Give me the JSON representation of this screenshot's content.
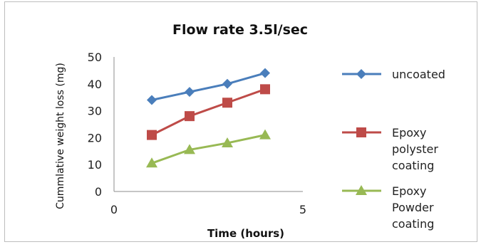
{
  "chart_data": {
    "type": "line",
    "title": "Flow rate 3.5l/sec",
    "xlabel": "Time (hours)",
    "ylabel": "Cummlative weight loss (mg)",
    "xlim": [
      0,
      5
    ],
    "ylim": [
      0,
      50
    ],
    "x_ticks": [
      "0",
      "5"
    ],
    "y_ticks": [
      "0",
      "10",
      "20",
      "30",
      "40",
      "50"
    ],
    "x": [
      1,
      2,
      3,
      4
    ],
    "series": [
      {
        "name": "uncoated",
        "name_lines": [
          "uncoated"
        ],
        "values": [
          34,
          37,
          40,
          44
        ],
        "color": "#4a7ebb",
        "marker": "diamond"
      },
      {
        "name": "Epoxy polyster coating",
        "name_lines": [
          "Epoxy",
          "polyster",
          "coating"
        ],
        "values": [
          21,
          28,
          33,
          38
        ],
        "color": "#be4b48",
        "marker": "square"
      },
      {
        "name": "Epoxy Powder coating",
        "name_lines": [
          "Epoxy",
          "Powder",
          "coating"
        ],
        "values": [
          10.5,
          15.5,
          18,
          21
        ],
        "color": "#98b954",
        "marker": "triangle"
      }
    ],
    "grid": false,
    "legend": "right"
  }
}
